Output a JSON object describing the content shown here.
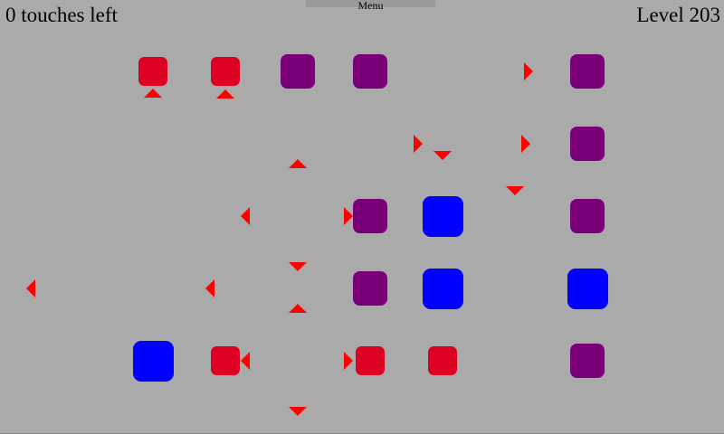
{
  "hud": {
    "touches_left": "0 touches left",
    "level": "Level 203",
    "menu_label": "Menu"
  },
  "colors": {
    "background": "#aaaaaa",
    "small": "#dd0022",
    "medium": "#7a007a",
    "large": "#0000ff",
    "arrow": "#ff0000"
  },
  "board": {
    "pieces": [
      {
        "col": 2,
        "row": 0,
        "size": "small"
      },
      {
        "col": 3,
        "row": 0,
        "size": "small"
      },
      {
        "col": 4,
        "row": 0,
        "size": "medium"
      },
      {
        "col": 5,
        "row": 0,
        "size": "medium"
      },
      {
        "col": 8,
        "row": 0,
        "size": "medium"
      },
      {
        "col": 8,
        "row": 1,
        "size": "medium"
      },
      {
        "col": 5,
        "row": 2,
        "size": "medium"
      },
      {
        "col": 6,
        "row": 2,
        "size": "large"
      },
      {
        "col": 8,
        "row": 2,
        "size": "medium"
      },
      {
        "col": 5,
        "row": 3,
        "size": "medium"
      },
      {
        "col": 6,
        "row": 3,
        "size": "large"
      },
      {
        "col": 8,
        "row": 3,
        "size": "large"
      },
      {
        "col": 2,
        "row": 4,
        "size": "large"
      },
      {
        "col": 3,
        "row": 4,
        "size": "small"
      },
      {
        "col": 5,
        "row": 4,
        "size": "small"
      },
      {
        "col": 6,
        "row": 4,
        "size": "small"
      },
      {
        "col": 8,
        "row": 4,
        "size": "medium"
      }
    ],
    "projectiles": [
      {
        "dir": "up"
      },
      {
        "dir": "up"
      },
      {
        "dir": "up"
      },
      {
        "dir": "up"
      },
      {
        "dir": "down"
      },
      {
        "dir": "down"
      },
      {
        "dir": "down"
      },
      {
        "dir": "down"
      },
      {
        "dir": "right"
      },
      {
        "dir": "right"
      },
      {
        "dir": "right"
      },
      {
        "dir": "right"
      },
      {
        "dir": "right"
      },
      {
        "dir": "left"
      },
      {
        "dir": "left"
      },
      {
        "dir": "left"
      },
      {
        "dir": "left"
      }
    ]
  }
}
